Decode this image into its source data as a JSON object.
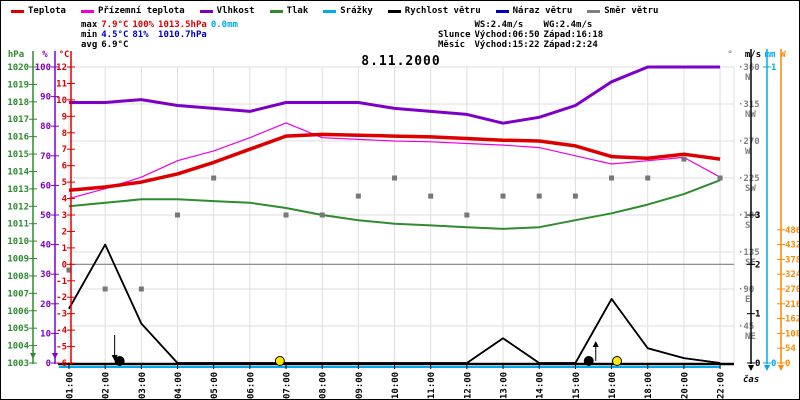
{
  "title": "8.11.2000",
  "legend": [
    {
      "label": "Teplota",
      "color": "#dd0000"
    },
    {
      "label": "Přízemní teplota",
      "color": "#ee00dd"
    },
    {
      "label": "Vlhkost",
      "color": "#7d00c8"
    },
    {
      "label": "Tlak",
      "color": "#2e8b2e"
    },
    {
      "label": "Srážky",
      "color": "#00aaee"
    },
    {
      "label": "Rychlost větru",
      "color": "#000000"
    },
    {
      "label": "Náraz větru",
      "color": "#0000bb"
    },
    {
      "label": "Směr větru",
      "color": "#808080"
    }
  ],
  "stats": {
    "max_label": "max",
    "max_temp": "7.9°C",
    "max_hum": "100%",
    "max_pres": "1013.5hPa",
    "max_rain": "0.0mm",
    "min_label": "min",
    "min_temp": "4.5°C",
    "min_hum": "81%",
    "min_pres": "1010.7hPa",
    "avg_label": "avg",
    "avg_temp": "6.9°C",
    "ws": "WS:2.4m/s",
    "wg": "WG:2.4m/s",
    "sun_label": "Slunce",
    "sun_rise": "Východ:06:50",
    "sun_set": "Západ:16:18",
    "moon_label": "Měsíc",
    "moon_rise": "Východ:15:22",
    "moon_set": "Západ:2:24"
  },
  "axes": {
    "pressure": {
      "unit": "hPa",
      "color": "#2e8b2e",
      "min": 1003,
      "max": 1020,
      "ticks": [
        1020,
        1019,
        1018,
        1017,
        1016,
        1015,
        1014,
        1013,
        1012,
        1011,
        1010,
        1009,
        1008,
        1007,
        1006,
        1005,
        1004,
        1003
      ]
    },
    "humidity": {
      "unit": "%",
      "color": "#7d00c8",
      "min": 0,
      "max": 100,
      "ticks": [
        100,
        90,
        80,
        70,
        60,
        50,
        40,
        30,
        20,
        10,
        0
      ]
    },
    "temperature": {
      "unit": "°C",
      "color": "#dd0000",
      "min": -6,
      "max": 12,
      "ticks": [
        12,
        11,
        10,
        9,
        8,
        7,
        6,
        5,
        4,
        3,
        2,
        1,
        0,
        -1,
        -2,
        -3,
        -4,
        -5,
        -6
      ]
    },
    "direction": {
      "unit": "°",
      "color": "#808080",
      "min": 0,
      "max": 360,
      "ticks": [
        {
          "deg": 360,
          "dir": "N"
        },
        {
          "deg": 315,
          "dir": "NW"
        },
        {
          "deg": 270,
          "dir": "W"
        },
        {
          "deg": 225,
          "dir": "SW"
        },
        {
          "deg": 180,
          "dir": "S"
        },
        {
          "deg": 135,
          "dir": "SE"
        },
        {
          "deg": 90,
          "dir": "E"
        },
        {
          "deg": 45,
          "dir": "NE"
        }
      ]
    },
    "wind": {
      "unit": "m/s",
      "color": "#000000",
      "min": 0,
      "max": 6,
      "ticks": [
        3,
        2,
        1,
        0
      ]
    },
    "rain": {
      "unit": "mm",
      "color": "#00aaee",
      "min": 0,
      "max": 1,
      "ticks": [
        1,
        0
      ]
    },
    "solar": {
      "unit": "W",
      "color": "#ff8800",
      "min": 0,
      "max": 1080,
      "ticks": [
        486,
        432,
        378,
        324,
        270,
        216,
        162,
        108,
        54,
        0
      ]
    },
    "xlabel": "čas"
  },
  "chart_data": {
    "type": "line",
    "x": [
      "01:00",
      "02:00",
      "03:00",
      "04:00",
      "05:00",
      "06:00",
      "07:00",
      "08:00",
      "09:00",
      "10:00",
      "11:00",
      "12:00",
      "13:00",
      "14:00",
      "15:00",
      "16:00",
      "18:00",
      "20:00",
      "22:00"
    ],
    "series": [
      {
        "name": "Teplota",
        "axis": "temperature",
        "color": "#dd0000",
        "width": 3.5,
        "values": [
          4.5,
          4.7,
          5.0,
          5.5,
          6.2,
          7.0,
          7.8,
          7.9,
          7.85,
          7.8,
          7.75,
          7.65,
          7.55,
          7.5,
          7.2,
          6.55,
          6.45,
          6.7,
          6.4
        ]
      },
      {
        "name": "Přízemní teplota",
        "axis": "temperature",
        "color": "#ee00dd",
        "width": 1.2,
        "values": [
          4.0,
          4.6,
          5.3,
          6.3,
          6.9,
          7.7,
          8.6,
          7.7,
          7.6,
          7.5,
          7.45,
          7.35,
          7.25,
          7.1,
          6.6,
          6.1,
          6.3,
          6.5,
          5.3
        ]
      },
      {
        "name": "Vlhkost",
        "axis": "humidity",
        "color": "#7d00c8",
        "width": 3,
        "values": [
          88,
          88,
          89,
          87,
          86,
          85,
          88,
          88,
          88,
          86,
          85,
          84,
          81,
          83,
          87,
          95,
          100,
          100,
          100
        ]
      },
      {
        "name": "Tlak",
        "axis": "pressure",
        "color": "#2e8b2e",
        "width": 2,
        "values": [
          1012.0,
          1012.2,
          1012.4,
          1012.4,
          1012.3,
          1012.2,
          1011.9,
          1011.5,
          1011.2,
          1011.0,
          1010.9,
          1010.8,
          1010.7,
          1010.8,
          1011.2,
          1011.6,
          1012.1,
          1012.7,
          1013.5
        ]
      },
      {
        "name": "Náraz větru",
        "axis": "wind",
        "color": "#0000bb",
        "width": 1.5,
        "values": [
          1.1,
          2.4,
          0.8,
          0,
          0,
          0,
          0,
          0,
          0,
          0,
          0,
          0,
          0.5,
          0,
          0,
          1.3,
          0.3,
          0.1,
          0
        ]
      },
      {
        "name": "Rychlost větru",
        "axis": "wind",
        "color": "#000000",
        "width": 1.8,
        "values": [
          1.1,
          2.4,
          0.8,
          0,
          0,
          0,
          0,
          0,
          0,
          0,
          0,
          0,
          0.5,
          0,
          0,
          1.3,
          0.3,
          0.1,
          0
        ]
      },
      {
        "name": "Srážky",
        "axis": "rain",
        "color": "#00aaee",
        "width": 2,
        "values": [
          0,
          0,
          0,
          0,
          0,
          0,
          0,
          0,
          0,
          0,
          0,
          0,
          0,
          0,
          0,
          0,
          0,
          0,
          0
        ]
      }
    ],
    "scatter": {
      "name": "Směr větru",
      "axis": "direction",
      "color": "#777777",
      "values": [
        113,
        90,
        90,
        180,
        225,
        null,
        180,
        180,
        203,
        225,
        203,
        180,
        203,
        203,
        203,
        225,
        225,
        248,
        225
      ]
    },
    "markers": [
      {
        "name": "moon-set",
        "hour": 2.4,
        "icon": "moon",
        "arrow": "down"
      },
      {
        "name": "sun-rise",
        "hour": 6.83,
        "icon": "sun"
      },
      {
        "name": "moon-rise",
        "hour": 15.37,
        "icon": "moon",
        "arrow": "up"
      },
      {
        "name": "sun-set",
        "hour": 16.3,
        "icon": "sun"
      }
    ],
    "zero_line_temp_c": 0,
    "grid": true,
    "sun_color": "#ffe800",
    "moon_color": "#000000",
    "grid_color": "#dedede",
    "zero_line_color": "#808080"
  }
}
